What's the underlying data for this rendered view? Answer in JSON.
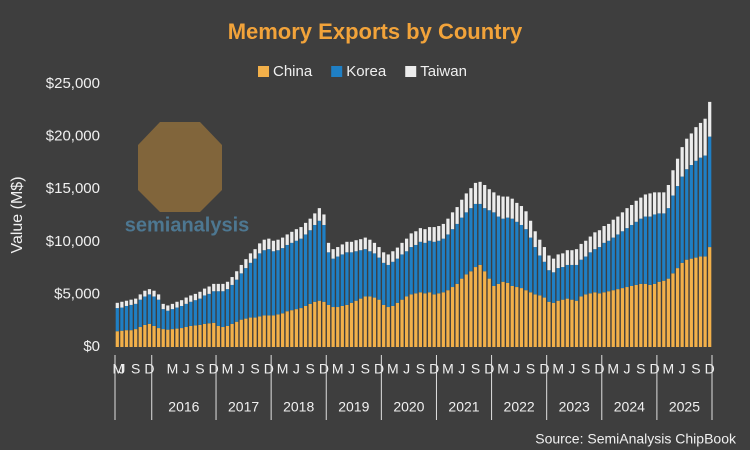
{
  "chart_data": {
    "type": "stacked_bar",
    "title": "Memory Exports by Country",
    "y_label": "Value (M$)",
    "source": "Source: SemiAnalysis ChipBook",
    "watermark": "semianalysis",
    "legend": "top",
    "categories": [
      null,
      "J",
      null,
      null,
      "S",
      null,
      null,
      "D",
      null,
      null,
      null,
      null,
      "M",
      null,
      null,
      "J",
      null,
      null,
      "S",
      null,
      null,
      "D",
      null,
      null,
      "M",
      null,
      null,
      "J",
      null,
      null,
      "S",
      null,
      null,
      "D",
      null,
      null,
      "M",
      null,
      null,
      "J",
      null,
      null,
      "S",
      null,
      null,
      "D",
      null,
      null,
      "M",
      null,
      null,
      "J",
      null,
      null,
      "S",
      null,
      null,
      "D",
      null,
      null,
      "M",
      null,
      null,
      "J",
      null,
      null,
      "S",
      null,
      null,
      "D",
      null,
      null,
      "M",
      null,
      null,
      "J",
      null,
      null,
      "S",
      null,
      null,
      "D",
      null,
      null,
      "M",
      null,
      null,
      "J",
      null,
      null,
      "S",
      null,
      null,
      "D",
      null,
      null,
      "M",
      null,
      null,
      "J",
      null,
      null,
      "S",
      null,
      null,
      "D",
      null,
      null,
      "M",
      null,
      null,
      "J",
      null,
      null,
      "S",
      null,
      null,
      "D",
      null,
      null,
      "M",
      null,
      null,
      "J",
      null,
      null,
      "S",
      null,
      null,
      "D"
    ],
    "first_category": "M",
    "year_labels": [
      null,
      "2016",
      "2017",
      "2018",
      "2019",
      "2020",
      "2021",
      "2022",
      "2023",
      "2024",
      "2025"
    ],
    "ylim": [
      0,
      25000
    ],
    "yticks": [
      {
        "value": 0,
        "label": "$0"
      },
      {
        "value": 5000,
        "label": "$5,000"
      },
      {
        "value": 10000,
        "label": "$10,000"
      },
      {
        "value": 15000,
        "label": "$15,000"
      },
      {
        "value": 20000,
        "label": "$20,000"
      },
      {
        "value": 25000,
        "label": "$25,000"
      }
    ],
    "series": [
      {
        "name": "China",
        "color": "#f2b04a",
        "values": [
          1500,
          1550,
          1600,
          1600,
          1700,
          1900,
          2100,
          2200,
          2000,
          1800,
          1700,
          1650,
          1700,
          1750,
          1800,
          1900,
          2000,
          2050,
          2100,
          2200,
          2250,
          2300,
          2000,
          1900,
          2000,
          2200,
          2400,
          2600,
          2700,
          2800,
          2800,
          2900,
          3000,
          3000,
          3000,
          3100,
          3200,
          3400,
          3500,
          3600,
          3700,
          3900,
          4100,
          4300,
          4400,
          4300,
          4000,
          3800,
          3800,
          3900,
          4000,
          4200,
          4400,
          4600,
          4800,
          4800,
          4700,
          4500,
          4000,
          3800,
          3900,
          4200,
          4500,
          4800,
          5000,
          5100,
          5200,
          5100,
          5200,
          5000,
          5100,
          5200,
          5400,
          5700,
          6000,
          6500,
          6900,
          7200,
          7600,
          7800,
          7200,
          6500,
          5800,
          6000,
          6200,
          6100,
          5800,
          5700,
          5600,
          5400,
          5200,
          5000,
          4900,
          4700,
          4300,
          4200,
          4400,
          4500,
          4600,
          4500,
          4400,
          4800,
          5000,
          5100,
          5200,
          5100,
          5200,
          5300,
          5400,
          5500,
          5600,
          5700,
          5800,
          5900,
          6000,
          6000,
          5900,
          6000,
          6200,
          6300,
          6500,
          7000,
          7500,
          8000,
          8300,
          8400,
          8500,
          8600,
          8600,
          9500
        ]
      },
      {
        "name": "Korea",
        "color": "#1f7fc4",
        "values": [
          2200,
          2200,
          2300,
          2400,
          2400,
          2600,
          2700,
          2800,
          2800,
          2700,
          1900,
          1800,
          1900,
          2000,
          2100,
          2200,
          2300,
          2400,
          2500,
          2700,
          2800,
          3000,
          3300,
          3400,
          3500,
          3700,
          4000,
          4400,
          4800,
          5200,
          5600,
          6000,
          6200,
          6300,
          6100,
          6100,
          6200,
          6300,
          6400,
          6500,
          6600,
          6800,
          7000,
          7300,
          7600,
          7300,
          5000,
          4600,
          4800,
          4900,
          5000,
          4800,
          4700,
          4600,
          4500,
          4300,
          4200,
          4000,
          4000,
          4000,
          4200,
          4200,
          4300,
          4300,
          4500,
          4600,
          4800,
          4800,
          4900,
          5000,
          5000,
          5100,
          5300,
          5500,
          5700,
          5800,
          5900,
          6000,
          6000,
          5800,
          6000,
          6500,
          7000,
          6400,
          6000,
          6200,
          6400,
          6200,
          6000,
          5800,
          5200,
          4500,
          3800,
          3400,
          3000,
          2900,
          3100,
          3100,
          3200,
          3300,
          3400,
          3500,
          3600,
          3900,
          4100,
          4400,
          4700,
          4800,
          5000,
          5200,
          5400,
          5600,
          5800,
          6000,
          6200,
          6400,
          6500,
          6600,
          6500,
          6400,
          6700,
          7400,
          7800,
          8200,
          8600,
          8900,
          9200,
          9400,
          9600,
          10500
        ]
      },
      {
        "name": "Taiwan",
        "color": "#ececec",
        "values": [
          500,
          550,
          500,
          500,
          500,
          500,
          550,
          500,
          550,
          500,
          500,
          500,
          500,
          550,
          550,
          600,
          600,
          600,
          650,
          650,
          700,
          700,
          700,
          700,
          700,
          750,
          800,
          800,
          850,
          900,
          900,
          950,
          1000,
          1000,
          1000,
          1000,
          1000,
          1000,
          1050,
          1100,
          1100,
          1100,
          1100,
          1100,
          1200,
          1000,
          900,
          900,
          900,
          950,
          1000,
          1000,
          1050,
          1050,
          1100,
          1100,
          1000,
          1000,
          1000,
          1000,
          1000,
          1050,
          1100,
          1200,
          1300,
          1300,
          1300,
          1300,
          1300,
          1400,
          1400,
          1400,
          1500,
          1600,
          1600,
          1700,
          1800,
          1900,
          2000,
          2100,
          2200,
          2000,
          1900,
          2000,
          2100,
          2000,
          1900,
          1800,
          1800,
          1700,
          1600,
          1500,
          1500,
          1400,
          1400,
          1300,
          1300,
          1300,
          1400,
          1400,
          1500,
          1500,
          1500,
          1500,
          1600,
          1600,
          1600,
          1600,
          1700,
          1700,
          1800,
          1900,
          1900,
          2000,
          2000,
          2100,
          2200,
          2100,
          2000,
          2000,
          2200,
          2400,
          2600,
          2800,
          2900,
          3000,
          3200,
          3300,
          3500,
          3300
        ]
      }
    ]
  }
}
